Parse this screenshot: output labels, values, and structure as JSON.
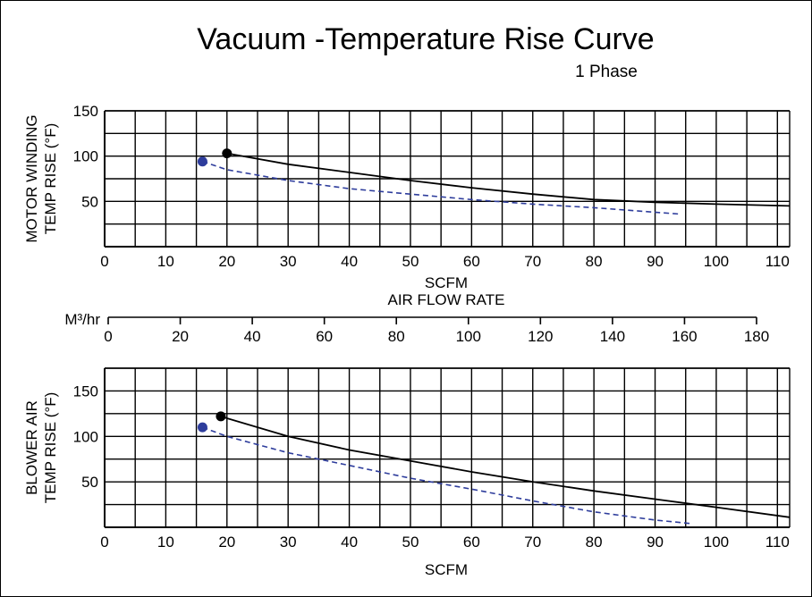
{
  "chart_data": {
    "title": "Vacuum -Temperature Rise Curve",
    "subtitle": "1 Phase",
    "colors": {
      "series_a": "#000000",
      "series_b": "#2e3d9c"
    },
    "charts": [
      {
        "type": "line",
        "ylabel_line1": "MOTOR WINDING",
        "ylabel_line2": "TEMP RISE (°F)",
        "xlabel": "SCFM",
        "xlim": [
          0,
          112
        ],
        "ylim": [
          0,
          150
        ],
        "x_ticks": [
          "0",
          "10",
          "20",
          "30",
          "40",
          "50",
          "60",
          "70",
          "80",
          "90",
          "100",
          "110"
        ],
        "y_ticks": [
          "50",
          "100",
          "150"
        ],
        "series": [
          {
            "style": "solid",
            "x": [
              20,
              30,
              40,
              50,
              60,
              70,
              80,
              90,
              100,
              112
            ],
            "y": [
              103,
              91,
              82,
              73,
              65,
              58,
              52,
              49,
              47,
              45
            ]
          },
          {
            "style": "dashed",
            "x": [
              16,
              20,
              30,
              40,
              50,
              60,
              70,
              80,
              94
            ],
            "y": [
              94,
              85,
              73,
              64,
              58,
              52,
              47,
              43,
              36
            ]
          }
        ]
      },
      {
        "type": "line",
        "ylabel_line1": "BLOWER AIR",
        "ylabel_line2": "TEMP RISE (°F)",
        "xlabel": "SCFM",
        "xlim": [
          0,
          112
        ],
        "ylim": [
          0,
          175
        ],
        "x_ticks": [
          "0",
          "10",
          "20",
          "30",
          "40",
          "50",
          "60",
          "70",
          "80",
          "90",
          "100",
          "110"
        ],
        "y_ticks": [
          "50",
          "100",
          "150"
        ],
        "series": [
          {
            "style": "solid",
            "x": [
              19,
              30,
              40,
              50,
              60,
              70,
              80,
              90,
              100,
              112
            ],
            "y": [
              122,
              100,
              85,
              73,
              61,
              50,
              40,
              31,
              22,
              11
            ]
          },
          {
            "style": "dashed",
            "x": [
              16,
              20,
              30,
              40,
              50,
              60,
              70,
              80,
              90,
              96
            ],
            "y": [
              110,
              100,
              82,
              68,
              54,
              42,
              29,
              17,
              8,
              4
            ]
          }
        ]
      }
    ],
    "secondary_axis": {
      "label": "AIR FLOW RATE",
      "unit": "M³/hr",
      "ticks": [
        "0",
        "20",
        "40",
        "60",
        "80",
        "100",
        "120",
        "140",
        "160",
        "180"
      ],
      "tick_values": [
        0,
        20,
        40,
        60,
        80,
        100,
        120,
        140,
        160,
        180
      ]
    }
  }
}
